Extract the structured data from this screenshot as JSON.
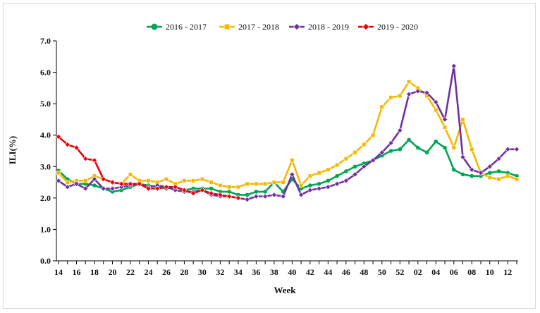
{
  "chart_data": {
    "type": "line",
    "title": "",
    "xlabel": "Week",
    "ylabel": "ILI(%)",
    "ylim": [
      0,
      7
    ],
    "yticks": [
      "0.0",
      "1.0",
      "2.0",
      "3.0",
      "4.0",
      "5.0",
      "6.0",
      "7.0"
    ],
    "x_tick_labels": [
      "14",
      "16",
      "18",
      "20",
      "22",
      "24",
      "26",
      "28",
      "30",
      "32",
      "34",
      "36",
      "38",
      "40",
      "42",
      "44",
      "46",
      "48",
      "50",
      "52",
      "02",
      "04",
      "06",
      "08",
      "10",
      "12"
    ],
    "weeks": [
      "14",
      "15",
      "16",
      "17",
      "18",
      "19",
      "20",
      "21",
      "22",
      "23",
      "24",
      "25",
      "26",
      "27",
      "28",
      "29",
      "30",
      "31",
      "32",
      "33",
      "34",
      "35",
      "36",
      "37",
      "38",
      "39",
      "40",
      "41",
      "42",
      "43",
      "44",
      "45",
      "46",
      "47",
      "48",
      "49",
      "50",
      "51",
      "52",
      "01",
      "02",
      "03",
      "04",
      "05",
      "06",
      "07",
      "08",
      "09",
      "10",
      "11",
      "12",
      "13"
    ],
    "legend_position": "top",
    "grid": false,
    "series": [
      {
        "name": "2016 - 2017",
        "color": "#00a651",
        "marker": "circle",
        "values": [
          2.87,
          2.6,
          2.45,
          2.45,
          2.4,
          2.3,
          2.2,
          2.25,
          2.35,
          2.45,
          2.4,
          2.35,
          2.3,
          2.35,
          2.25,
          2.3,
          2.3,
          2.3,
          2.2,
          2.2,
          2.1,
          2.1,
          2.2,
          2.2,
          2.5,
          2.2,
          2.6,
          2.3,
          2.4,
          2.45,
          2.55,
          2.7,
          2.85,
          3.0,
          3.1,
          3.2,
          3.35,
          3.5,
          3.55,
          3.85,
          3.6,
          3.45,
          3.8,
          3.6,
          2.9,
          2.75,
          2.7,
          2.7,
          2.8,
          2.85,
          2.8,
          2.7
        ]
      },
      {
        "name": "2017 - 2018",
        "color": "#f5b800",
        "marker": "square",
        "values": [
          2.8,
          2.5,
          2.55,
          2.55,
          2.7,
          2.6,
          2.5,
          2.45,
          2.75,
          2.55,
          2.55,
          2.5,
          2.6,
          2.45,
          2.55,
          2.55,
          2.6,
          2.5,
          2.4,
          2.35,
          2.35,
          2.45,
          2.45,
          2.45,
          2.5,
          2.5,
          3.2,
          2.4,
          2.7,
          2.8,
          2.9,
          3.05,
          3.25,
          3.45,
          3.7,
          4.0,
          4.9,
          5.2,
          5.25,
          5.7,
          5.5,
          5.25,
          4.8,
          4.25,
          3.6,
          4.5,
          3.55,
          2.8,
          2.65,
          2.6,
          2.7,
          2.6
        ]
      },
      {
        "name": "2018 - 2019",
        "color": "#7030a0",
        "marker": "diamond",
        "values": [
          2.55,
          2.35,
          2.45,
          2.3,
          2.6,
          2.3,
          2.3,
          2.35,
          2.4,
          2.45,
          2.35,
          2.4,
          2.35,
          2.25,
          2.2,
          2.2,
          2.25,
          2.1,
          2.05,
          2.05,
          2.0,
          1.95,
          2.05,
          2.05,
          2.1,
          2.05,
          2.75,
          2.1,
          2.25,
          2.3,
          2.35,
          2.45,
          2.55,
          2.75,
          3.0,
          3.2,
          3.45,
          3.75,
          4.15,
          5.3,
          5.4,
          5.35,
          5.05,
          4.5,
          6.2,
          3.3,
          2.9,
          2.8,
          3.0,
          3.25,
          3.55,
          3.55
        ]
      },
      {
        "name": "2019 - 2020",
        "color": "#e8000b",
        "marker": "diamond",
        "values": [
          3.95,
          3.7,
          3.6,
          3.25,
          3.2,
          2.6,
          2.5,
          2.45,
          2.45,
          2.45,
          2.3,
          2.3,
          2.35,
          2.35,
          2.25,
          2.15,
          2.25,
          2.15,
          2.1,
          2.05,
          2.0
        ]
      }
    ]
  }
}
